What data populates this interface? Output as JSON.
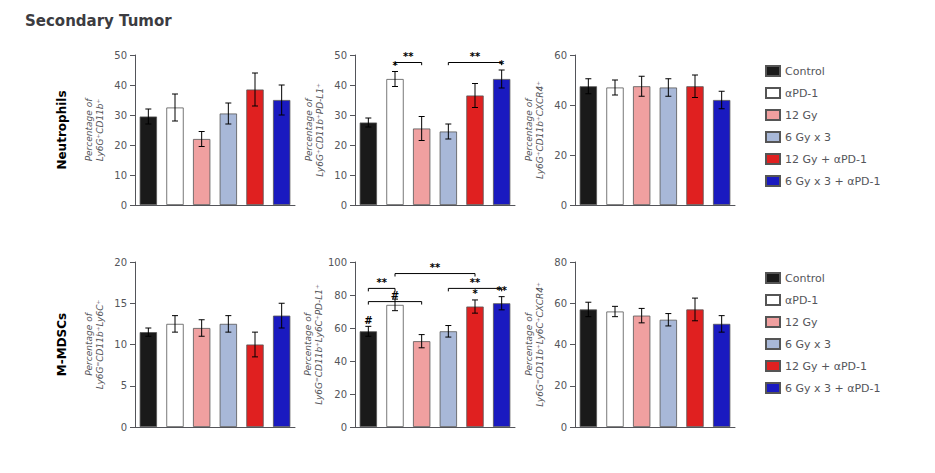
{
  "title": "Secondary Tumor",
  "row_labels": [
    "Neutrophils",
    "M-MDSCs"
  ],
  "chart_data": [
    {
      "type": "bar",
      "ylabel": "Percentage of\nLy6G⁺CD11b⁺",
      "categories": [
        "Control",
        "αPD-1",
        "12 Gy",
        "6 Gy x 3",
        "12 Gy + αPD-1",
        "6 Gy x 3 + αPD-1"
      ],
      "colors": [
        "#1a1a1a",
        "#ffffff",
        "#f0a0a0",
        "#a8b8d8",
        "#e02020",
        "#1a1ac0"
      ],
      "values": [
        29.5,
        32.5,
        22.0,
        30.5,
        38.5,
        35.0
      ],
      "errors": [
        2.5,
        4.5,
        2.5,
        3.5,
        5.5,
        5.0
      ],
      "ylim": [
        0,
        50
      ],
      "yticks": [
        0,
        10,
        20,
        30,
        40,
        50
      ],
      "grid": false,
      "tick_labels": "y",
      "annotations": []
    },
    {
      "type": "bar",
      "ylabel": "Percentage of\nLy6G⁺CD11b⁺PD-L1⁺",
      "categories": [
        "Control",
        "αPD-1",
        "12 Gy",
        "6 Gy x 3",
        "12 Gy + αPD-1",
        "6 Gy x 3 + αPD-1"
      ],
      "colors": [
        "#1a1a1a",
        "#ffffff",
        "#f0a0a0",
        "#a8b8d8",
        "#e02020",
        "#1a1ac0"
      ],
      "values": [
        27.5,
        42.0,
        25.5,
        24.5,
        36.5,
        42.0
      ],
      "errors": [
        1.5,
        2.5,
        4.0,
        2.5,
        4.0,
        3.0
      ],
      "ylim": [
        0,
        50
      ],
      "yticks": [
        0,
        10,
        20,
        30,
        40,
        50
      ],
      "grid": false,
      "tick_labels": "y",
      "annotations": [
        {
          "text": "**",
          "bars": [
            1,
            2
          ],
          "y": 47.5
        },
        {
          "text": "**",
          "bars": [
            3,
            5
          ],
          "y": 47.5
        },
        {
          "text": "*",
          "bar": 1
        },
        {
          "text": "*",
          "bar": 5
        }
      ]
    },
    {
      "type": "bar",
      "ylabel": "Percentage of\nLy6G⁺CD11b⁺CXCR4⁺",
      "categories": [
        "Control",
        "αPD-1",
        "12 Gy",
        "6 Gy x 3",
        "12 Gy + αPD-1",
        "6 Gy x 3 + αPD-1"
      ],
      "colors": [
        "#1a1a1a",
        "#ffffff",
        "#f0a0a0",
        "#a8b8d8",
        "#e02020",
        "#1a1ac0"
      ],
      "values": [
        47.5,
        47.0,
        47.5,
        47.0,
        47.5,
        42.0
      ],
      "errors": [
        3.0,
        3.0,
        4.0,
        3.5,
        4.5,
        3.5
      ],
      "ylim": [
        0,
        60
      ],
      "yticks": [
        0,
        20,
        40,
        60
      ],
      "grid": false,
      "tick_labels": "y",
      "annotations": [],
      "legend": "right"
    },
    {
      "type": "bar",
      "ylabel": "Percentage of\nLy6G⁼CD11b⁺Ly6C⁺",
      "categories": [
        "Control",
        "αPD-1",
        "12 Gy",
        "6 Gy x 3",
        "12 Gy + αPD-1",
        "6 Gy x 3 + αPD-1"
      ],
      "colors": [
        "#1a1a1a",
        "#ffffff",
        "#f0a0a0",
        "#a8b8d8",
        "#e02020",
        "#1a1ac0"
      ],
      "values": [
        11.5,
        12.5,
        12.0,
        12.5,
        10.0,
        13.5
      ],
      "errors": [
        0.5,
        1.0,
        1.0,
        1.0,
        1.5,
        1.5
      ],
      "ylim": [
        0,
        20
      ],
      "yticks": [
        0,
        5,
        10,
        15,
        20
      ],
      "grid": false,
      "tick_labels": "y",
      "annotations": []
    },
    {
      "type": "bar",
      "ylabel": "Percentage of\nLy6G⁼CD11b⁺Ly6C⁺PD-L1⁺",
      "categories": [
        "Control",
        "αPD-1",
        "12 Gy",
        "6 Gy x 3",
        "12 Gy + αPD-1",
        "6 Gy x 3 + αPD-1"
      ],
      "colors": [
        "#1a1a1a",
        "#ffffff",
        "#f0a0a0",
        "#a8b8d8",
        "#e02020",
        "#1a1ac0"
      ],
      "values": [
        58.0,
        74.0,
        52.0,
        58.0,
        73.0,
        75.0
      ],
      "errors": [
        3.0,
        3.5,
        4.0,
        3.5,
        4.0,
        4.0
      ],
      "ylim": [
        0,
        100
      ],
      "yticks": [
        0,
        20,
        40,
        60,
        80,
        100
      ],
      "grid": false,
      "tick_labels": "y",
      "annotations": [
        {
          "text": "**",
          "bars": [
            0,
            1
          ],
          "y": 84
        },
        {
          "text": "#",
          "bars": [
            0,
            2
          ],
          "y": 76
        },
        {
          "text": "**",
          "bars": [
            1,
            4
          ],
          "y": 93
        },
        {
          "text": "**",
          "bars": [
            3,
            5
          ],
          "y": 84
        },
        {
          "text": "#",
          "bar": 0
        },
        {
          "text": "*",
          "bar": 4
        },
        {
          "text": "**",
          "bar": 5
        }
      ]
    },
    {
      "type": "bar",
      "ylabel": "Percentage of\nLy6G⁼CD11b⁺Ly6C⁺CXCR4⁺",
      "categories": [
        "Control",
        "αPD-1",
        "12 Gy",
        "6 Gy x 3",
        "12 Gy + αPD-1",
        "6 Gy x 3 + αPD-1"
      ],
      "colors": [
        "#1a1a1a",
        "#ffffff",
        "#f0a0a0",
        "#a8b8d8",
        "#e02020",
        "#1a1ac0"
      ],
      "values": [
        57.0,
        56.0,
        54.0,
        52.0,
        57.0,
        50.0
      ],
      "errors": [
        3.5,
        2.5,
        3.5,
        3.0,
        5.5,
        4.0
      ],
      "ylim": [
        0,
        80
      ],
      "yticks": [
        0,
        20,
        40,
        60,
        80
      ],
      "grid": false,
      "tick_labels": "y",
      "annotations": [],
      "legend": "right"
    }
  ]
}
